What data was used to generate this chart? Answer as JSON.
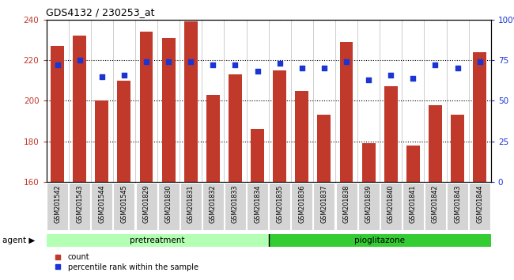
{
  "title": "GDS4132 / 230253_at",
  "samples": [
    "GSM201542",
    "GSM201543",
    "GSM201544",
    "GSM201545",
    "GSM201829",
    "GSM201830",
    "GSM201831",
    "GSM201832",
    "GSM201833",
    "GSM201834",
    "GSM201835",
    "GSM201836",
    "GSM201837",
    "GSM201838",
    "GSM201839",
    "GSM201840",
    "GSM201841",
    "GSM201842",
    "GSM201843",
    "GSM201844"
  ],
  "counts": [
    227,
    232,
    200,
    210,
    234,
    231,
    239,
    203,
    213,
    186,
    215,
    205,
    193,
    229,
    179,
    207,
    178,
    198,
    193,
    224
  ],
  "percentiles": [
    72,
    75,
    65,
    66,
    74,
    74,
    74,
    72,
    72,
    68,
    73,
    70,
    70,
    74,
    63,
    66,
    64,
    72,
    70,
    74
  ],
  "pretreatment_count": 10,
  "pioglitazone_count": 10,
  "bar_color": "#c0392b",
  "dot_color": "#1a35d4",
  "ylim_left": [
    160,
    240
  ],
  "ylim_right": [
    0,
    100
  ],
  "yticks_left": [
    160,
    180,
    200,
    220,
    240
  ],
  "yticks_right": [
    0,
    25,
    50,
    75,
    100
  ],
  "pretreat_color": "#b3ffb3",
  "pioglit_color": "#33cc33",
  "agent_label": "agent",
  "pretreatment_label": "pretreatment",
  "pioglitazone_label": "pioglitazone",
  "legend_count_label": "count",
  "legend_pct_label": "percentile rank within the sample"
}
